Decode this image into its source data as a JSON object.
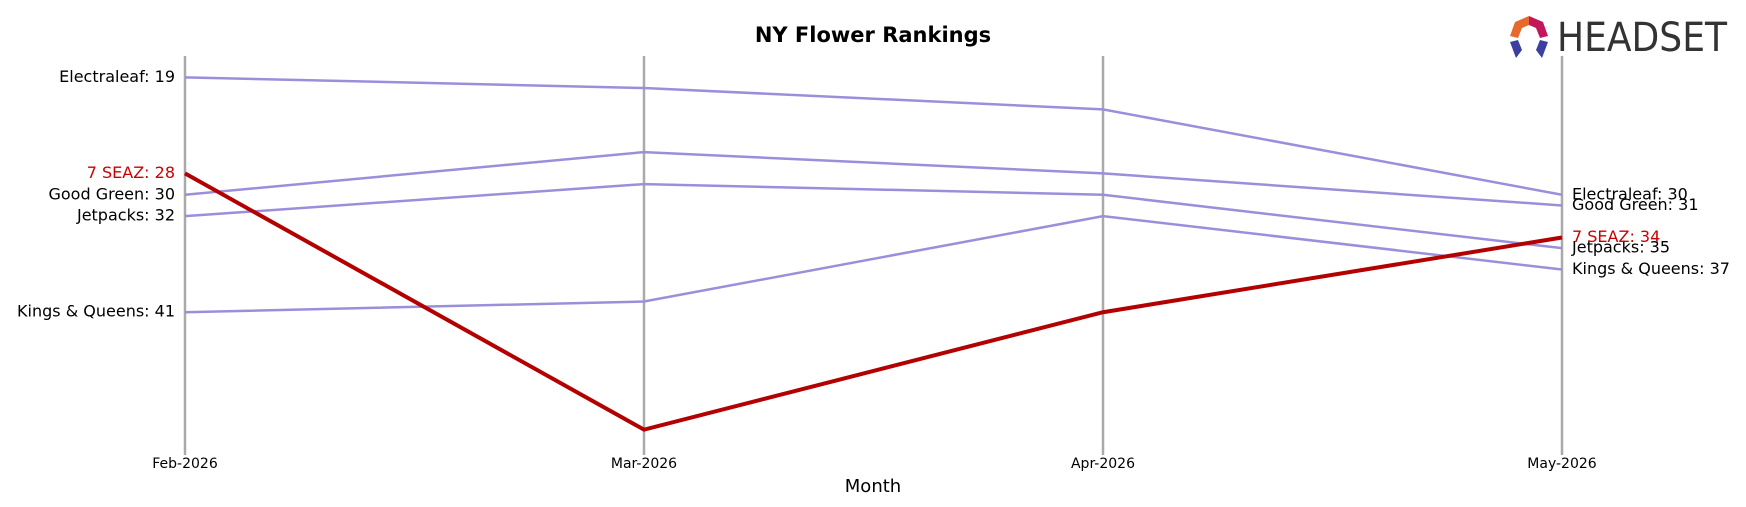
{
  "chart_data": {
    "type": "bump",
    "title": "NY Flower Rankings",
    "x_label": "Month",
    "logo_text": "HEADSET",
    "categories": [
      "Feb-2026",
      "Mar-2026",
      "Apr-2026",
      "May-2026"
    ],
    "ylim": [
      17,
      54
    ],
    "y_inverted": true,
    "grid": true,
    "series": [
      {
        "color": "#9b8fdb",
        "label_color": "#000000",
        "width": 2.5,
        "values": [
          19,
          20,
          22,
          30
        ],
        "value_labels": [
          "Electraleaf: 19",
          null,
          null,
          "Electraleaf: 30"
        ]
      },
      {
        "color": "#9b8fdb",
        "label_color": "#000000",
        "width": 2.5,
        "values": [
          30,
          26,
          28,
          31
        ],
        "value_labels": [
          "Good Green: 30",
          null,
          null,
          "Good Green: 31"
        ]
      },
      {
        "color": "#9b8fdb",
        "label_color": "#000000",
        "width": 2.5,
        "values": [
          32,
          29,
          30,
          35
        ],
        "value_labels": [
          "Jetpacks: 32",
          null,
          null,
          "Jetpacks: 35"
        ]
      },
      {
        "color": "#9b8fdb",
        "label_color": "#000000",
        "width": 2.5,
        "values": [
          41,
          40,
          32,
          37
        ],
        "value_labels": [
          "Kings & Queens: 41",
          null,
          null,
          "Kings & Queens: 37"
        ]
      },
      {
        "color": "#b30000",
        "label_color": "#cc0000",
        "width": 4,
        "values": [
          28,
          52,
          41,
          34
        ],
        "value_labels": [
          "7 SEAZ: 28",
          null,
          null,
          "7 SEAZ: 34"
        ]
      }
    ]
  }
}
